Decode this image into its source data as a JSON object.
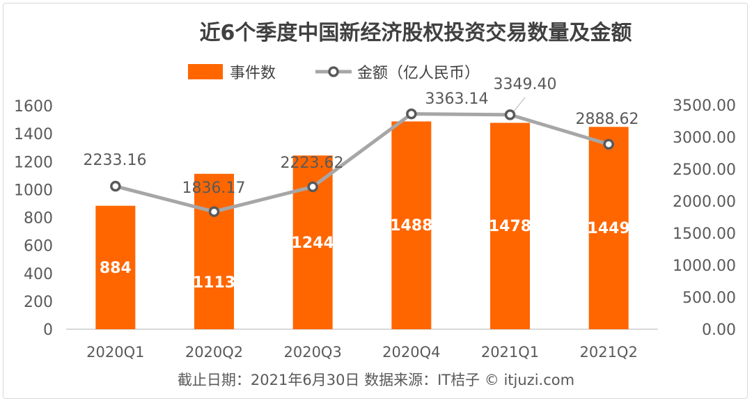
{
  "colors": {
    "bar": "#ff6600",
    "line": "#a6a6a6",
    "marker_stroke": "#595959",
    "text": "#595959",
    "title": "#404040",
    "grid_axis": "#d9d9d9"
  },
  "legend": {
    "bar_label": "事件数",
    "line_label": "金额（亿人民币）"
  },
  "footer": "截止日期：2021年6月30日    数据来源：IT桔子 © itjuzi.com",
  "chart_data": {
    "type": "bar+line",
    "title": "近6个季度中国新经济股权投资交易数量及金额",
    "categories": [
      "2020Q1",
      "2020Q2",
      "2020Q3",
      "2020Q4",
      "2021Q1",
      "2021Q2"
    ],
    "series": [
      {
        "name": "事件数",
        "type": "bar",
        "axis": "left",
        "values": [
          884,
          1113,
          1244,
          1488,
          1478,
          1449
        ],
        "labels": [
          "884",
          "1113",
          "1244",
          "1488",
          "1478",
          "1449"
        ]
      },
      {
        "name": "金额（亿人民币）",
        "type": "line",
        "axis": "right",
        "values": [
          2233.16,
          1836.17,
          2223.62,
          3363.14,
          3349.4,
          2888.62
        ],
        "labels": [
          "2233.16",
          "1836.17",
          "2223.62",
          "3363.14",
          "3349.40",
          "2888.62"
        ]
      }
    ],
    "left_axis": {
      "min": 0,
      "max": 1600,
      "step": 200,
      "ticks": [
        "0",
        "200",
        "400",
        "600",
        "800",
        "1000",
        "1200",
        "1400",
        "1600"
      ]
    },
    "right_axis": {
      "min": 0,
      "max": 3500,
      "step": 500,
      "ticks": [
        "0.00",
        "500.00",
        "1000.00",
        "1500.00",
        "2000.00",
        "2500.00",
        "3000.00",
        "3500.00"
      ]
    },
    "legend_position": "top",
    "grid": false
  }
}
